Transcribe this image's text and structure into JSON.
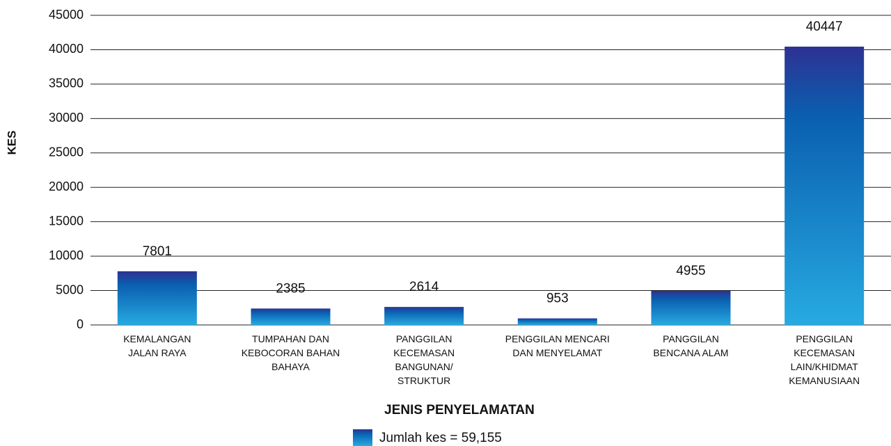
{
  "chart_data": {
    "type": "bar",
    "x_label": "JENIS PENYELAMATAN",
    "y_label": "KES",
    "categories": [
      "KEMALANGAN\nJALAN RAYA",
      "TUMPAHAN DAN\nKEBOCORAN BAHAN\nBAHAYA",
      "PANGGILAN\nKECEMASAN\nBANGUNAN/\nSTRUKTUR",
      "PENGGILAN MENCARI\nDAN MENYELAMAT",
      "PANGGILAN\nBENCANA ALAM",
      "PENGGILAN\nKECEMASAN\nLAIN/KHIDMAT\nKEMANUSIAAN"
    ],
    "series": [
      {
        "name": "Jumlah kes = 59,155",
        "color": "#0a5fb0",
        "values": [
          7801,
          2385,
          2614,
          953,
          4955,
          40447
        ]
      }
    ],
    "ylim": [
      0,
      45000
    ],
    "yticks": [
      0,
      5000,
      10000,
      15000,
      20000,
      25000,
      30000,
      35000,
      40000,
      45000
    ],
    "grid": true
  }
}
